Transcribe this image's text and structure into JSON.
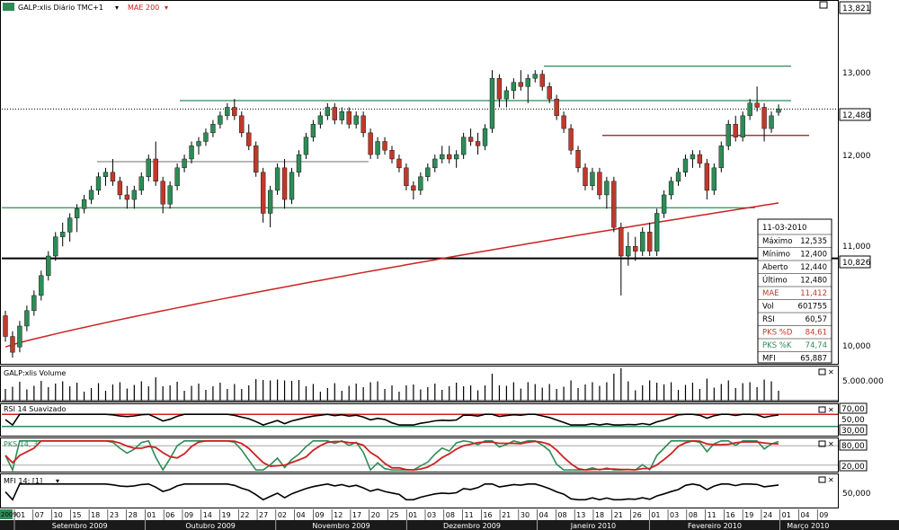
{
  "main_pane": {
    "title": "GALP:xlis Diário TMC+1",
    "indicator": "MAE 200",
    "y_ticks": [
      "13,821",
      "13,000",
      "12,000",
      "11,000",
      "10,000"
    ],
    "last_price_label": "12,480",
    "support_label": "10,826"
  },
  "info_box": {
    "date": "11-03-2010",
    "rows": [
      {
        "label": "Máximo",
        "value": "12,535",
        "color": "#000000"
      },
      {
        "label": "Mínimo",
        "value": "12,400",
        "color": "#000000"
      },
      {
        "label": "Aberto",
        "value": "12,440",
        "color": "#000000"
      },
      {
        "label": "Último",
        "value": "12,480",
        "color": "#000000"
      },
      {
        "label": "MAE",
        "value": "11,412",
        "color": "#c0392b"
      },
      {
        "label": "Vol",
        "value": "601755",
        "color": "#000000"
      },
      {
        "label": "RSI",
        "value": "60,57",
        "color": "#000000"
      },
      {
        "label": "PKS %D",
        "value": "84,61",
        "color": "#c0392b"
      },
      {
        "label": "PKS %K",
        "value": "74,74",
        "color": "#2e8b57"
      },
      {
        "label": "MFI",
        "value": "65,887",
        "color": "#000000"
      }
    ]
  },
  "volume_pane": {
    "title": "GALP:xlis Volume",
    "tick": "5.000.000"
  },
  "rsi_pane": {
    "title": "RSI 14 Suavizado",
    "ticks": [
      "70,00",
      "50,00",
      "30,00"
    ]
  },
  "pks_pane": {
    "title": "PKS 14, 3",
    "ticks": [
      "80,00",
      "20,00"
    ]
  },
  "mfi_pane": {
    "title": "MFI 14; [1]",
    "tick": "50,000"
  },
  "date_axis": {
    "days": [
      "01",
      "07",
      "10",
      "15",
      "18",
      "23",
      "28",
      "01",
      "06",
      "09",
      "14",
      "19",
      "22",
      "27",
      "02",
      "04",
      "09",
      "12",
      "17",
      "20",
      "25",
      "01",
      "03",
      "08",
      "11",
      "16",
      "21",
      "30",
      "04",
      "08",
      "13",
      "18",
      "21",
      "26",
      "01",
      "03",
      "08",
      "11",
      "16",
      "19",
      "24",
      "01",
      "04",
      "09"
    ],
    "months": [
      "Setembro 2009",
      "Outubro 2009",
      "Novembro 2009",
      "Dezembro 2009",
      "Janeiro 2010",
      "Fevereiro 2010",
      "Março 2010"
    ],
    "corner": "2009"
  },
  "chart_data": {
    "type": "candlestick",
    "title": "GALP:xlis Diário TMC+1",
    "symbol": "GALP:xlis",
    "period": "2009-09-01 to 2010-03-11",
    "ylim": [
      9.8,
      13.821
    ],
    "y_scale": "log",
    "candles": [
      [
        10.25,
        10.3,
        10.0,
        10.05
      ],
      [
        10.05,
        10.1,
        9.85,
        9.9
      ],
      [
        9.95,
        10.2,
        9.9,
        10.15
      ],
      [
        10.15,
        10.35,
        10.1,
        10.3
      ],
      [
        10.3,
        10.5,
        10.25,
        10.45
      ],
      [
        10.45,
        10.7,
        10.4,
        10.65
      ],
      [
        10.65,
        10.9,
        10.6,
        10.85
      ],
      [
        10.85,
        11.1,
        10.8,
        11.05
      ],
      [
        11.05,
        11.2,
        10.95,
        11.1
      ],
      [
        11.1,
        11.3,
        11.0,
        11.25
      ],
      [
        11.25,
        11.4,
        11.1,
        11.35
      ],
      [
        11.35,
        11.5,
        11.3,
        11.45
      ],
      [
        11.45,
        11.6,
        11.4,
        11.55
      ],
      [
        11.55,
        11.75,
        11.5,
        11.7
      ],
      [
        11.7,
        11.8,
        11.6,
        11.75
      ],
      [
        11.75,
        11.9,
        11.6,
        11.65
      ],
      [
        11.65,
        11.7,
        11.45,
        11.5
      ],
      [
        11.5,
        11.6,
        11.35,
        11.45
      ],
      [
        11.45,
        11.6,
        11.35,
        11.55
      ],
      [
        11.55,
        11.75,
        11.5,
        11.7
      ],
      [
        11.7,
        11.95,
        11.65,
        11.9
      ],
      [
        11.9,
        12.1,
        11.6,
        11.65
      ],
      [
        11.65,
        11.7,
        11.3,
        11.4
      ],
      [
        11.4,
        11.65,
        11.35,
        11.6
      ],
      [
        11.6,
        11.85,
        11.55,
        11.8
      ],
      [
        11.8,
        11.95,
        11.75,
        11.9
      ],
      [
        11.9,
        12.1,
        11.85,
        12.05
      ],
      [
        12.05,
        12.15,
        11.95,
        12.1
      ],
      [
        12.1,
        12.25,
        12.05,
        12.2
      ],
      [
        12.2,
        12.35,
        12.15,
        12.3
      ],
      [
        12.3,
        12.45,
        12.25,
        12.4
      ],
      [
        12.4,
        12.55,
        12.35,
        12.5
      ],
      [
        12.5,
        12.6,
        12.35,
        12.4
      ],
      [
        12.4,
        12.45,
        12.15,
        12.2
      ],
      [
        12.2,
        12.3,
        12.0,
        12.05
      ],
      [
        12.05,
        12.1,
        11.7,
        11.75
      ],
      [
        11.75,
        11.8,
        11.2,
        11.3
      ],
      [
        11.3,
        11.6,
        11.15,
        11.55
      ],
      [
        11.55,
        11.85,
        11.5,
        11.8
      ],
      [
        11.8,
        11.9,
        11.35,
        11.45
      ],
      [
        11.45,
        11.8,
        11.4,
        11.75
      ],
      [
        11.75,
        12.0,
        11.7,
        11.95
      ],
      [
        11.95,
        12.2,
        11.9,
        12.15
      ],
      [
        12.15,
        12.35,
        12.1,
        12.3
      ],
      [
        12.3,
        12.45,
        12.25,
        12.4
      ],
      [
        12.4,
        12.55,
        12.35,
        12.5
      ],
      [
        12.5,
        12.55,
        12.3,
        12.35
      ],
      [
        12.35,
        12.5,
        12.3,
        12.45
      ],
      [
        12.45,
        12.5,
        12.25,
        12.3
      ],
      [
        12.3,
        12.45,
        12.25,
        12.4
      ],
      [
        12.4,
        12.45,
        12.15,
        12.2
      ],
      [
        12.2,
        12.25,
        11.9,
        11.95
      ],
      [
        11.95,
        12.15,
        11.9,
        12.1
      ],
      [
        12.1,
        12.15,
        11.95,
        12.0
      ],
      [
        12.0,
        12.05,
        11.85,
        11.9
      ],
      [
        11.9,
        11.95,
        11.75,
        11.8
      ],
      [
        11.8,
        11.85,
        11.55,
        11.6
      ],
      [
        11.6,
        11.65,
        11.45,
        11.55
      ],
      [
        11.55,
        11.75,
        11.5,
        11.7
      ],
      [
        11.7,
        11.85,
        11.65,
        11.8
      ],
      [
        11.8,
        11.95,
        11.75,
        11.9
      ],
      [
        11.9,
        12.05,
        11.85,
        11.95
      ],
      [
        11.95,
        12.05,
        11.85,
        11.9
      ],
      [
        11.9,
        12.0,
        11.8,
        11.95
      ],
      [
        11.95,
        12.2,
        11.9,
        12.15
      ],
      [
        12.15,
        12.25,
        12.05,
        12.1
      ],
      [
        12.1,
        12.2,
        11.95,
        12.05
      ],
      [
        12.05,
        12.3,
        12.0,
        12.25
      ],
      [
        12.25,
        12.95,
        12.2,
        12.85
      ],
      [
        12.85,
        12.9,
        12.5,
        12.6
      ],
      [
        12.6,
        12.75,
        12.5,
        12.7
      ],
      [
        12.7,
        12.85,
        12.6,
        12.8
      ],
      [
        12.8,
        12.95,
        12.7,
        12.75
      ],
      [
        12.75,
        12.9,
        12.55,
        12.85
      ],
      [
        12.85,
        12.95,
        12.8,
        12.9
      ],
      [
        12.9,
        12.95,
        12.7,
        12.75
      ],
      [
        12.75,
        12.8,
        12.55,
        12.6
      ],
      [
        12.6,
        12.65,
        12.35,
        12.4
      ],
      [
        12.4,
        12.45,
        12.2,
        12.25
      ],
      [
        12.25,
        12.3,
        11.95,
        12.0
      ],
      [
        12.0,
        12.05,
        11.75,
        11.8
      ],
      [
        11.8,
        11.85,
        11.55,
        11.6
      ],
      [
        11.6,
        11.8,
        11.55,
        11.75
      ],
      [
        11.75,
        11.8,
        11.45,
        11.5
      ],
      [
        11.5,
        11.7,
        11.35,
        11.65
      ],
      [
        11.65,
        11.7,
        11.1,
        11.15
      ],
      [
        11.15,
        11.2,
        10.45,
        10.85
      ],
      [
        10.85,
        11.1,
        10.75,
        10.95
      ],
      [
        10.95,
        11.05,
        10.8,
        10.9
      ],
      [
        10.9,
        11.15,
        10.85,
        11.1
      ],
      [
        11.1,
        11.2,
        10.85,
        10.9
      ],
      [
        10.9,
        11.35,
        10.85,
        11.3
      ],
      [
        11.3,
        11.55,
        11.25,
        11.5
      ],
      [
        11.5,
        11.7,
        11.45,
        11.65
      ],
      [
        11.65,
        11.8,
        11.6,
        11.75
      ],
      [
        11.75,
        11.95,
        11.7,
        11.9
      ],
      [
        11.9,
        12.0,
        11.8,
        11.95
      ],
      [
        11.95,
        12.0,
        11.8,
        11.85
      ],
      [
        11.85,
        11.9,
        11.45,
        11.55
      ],
      [
        11.55,
        11.85,
        11.5,
        11.8
      ],
      [
        11.8,
        12.1,
        11.75,
        12.05
      ],
      [
        12.05,
        12.35,
        12.0,
        12.3
      ],
      [
        12.3,
        12.4,
        12.1,
        12.15
      ],
      [
        12.15,
        12.45,
        12.1,
        12.4
      ],
      [
        12.4,
        12.6,
        12.35,
        12.55
      ],
      [
        12.55,
        12.75,
        12.45,
        12.5
      ],
      [
        12.5,
        12.55,
        12.1,
        12.25
      ],
      [
        12.25,
        12.45,
        12.2,
        12.4
      ],
      [
        12.44,
        12.535,
        12.4,
        12.48
      ]
    ],
    "moving_average": {
      "name": "MAE 200",
      "start": 9.95,
      "end": 11.412
    },
    "horizontal_lines": [
      {
        "value": 13.0,
        "color": "#2e8b57"
      },
      {
        "value": 12.58,
        "color": "#2e8b57"
      },
      {
        "value": 12.17,
        "color": "#8b1a1a"
      },
      {
        "value": 11.87,
        "color": "#999999"
      },
      {
        "value": 11.36,
        "color": "#2e8b57"
      },
      {
        "value": 10.826,
        "color": "#000000"
      }
    ],
    "volume_max": 5000000,
    "rsi": {
      "upper": 70,
      "mid": 50,
      "lower": 30,
      "last": 60.57
    },
    "pks": {
      "d_last": 84.61,
      "k_last": 74.74,
      "upper": 80,
      "lower": 20
    },
    "mfi": {
      "last": 65.887,
      "tick": 50
    }
  },
  "colors": {
    "up": "#2e8b57",
    "down": "#c0392b",
    "ma": "#cc2222",
    "frame": "#000000"
  }
}
